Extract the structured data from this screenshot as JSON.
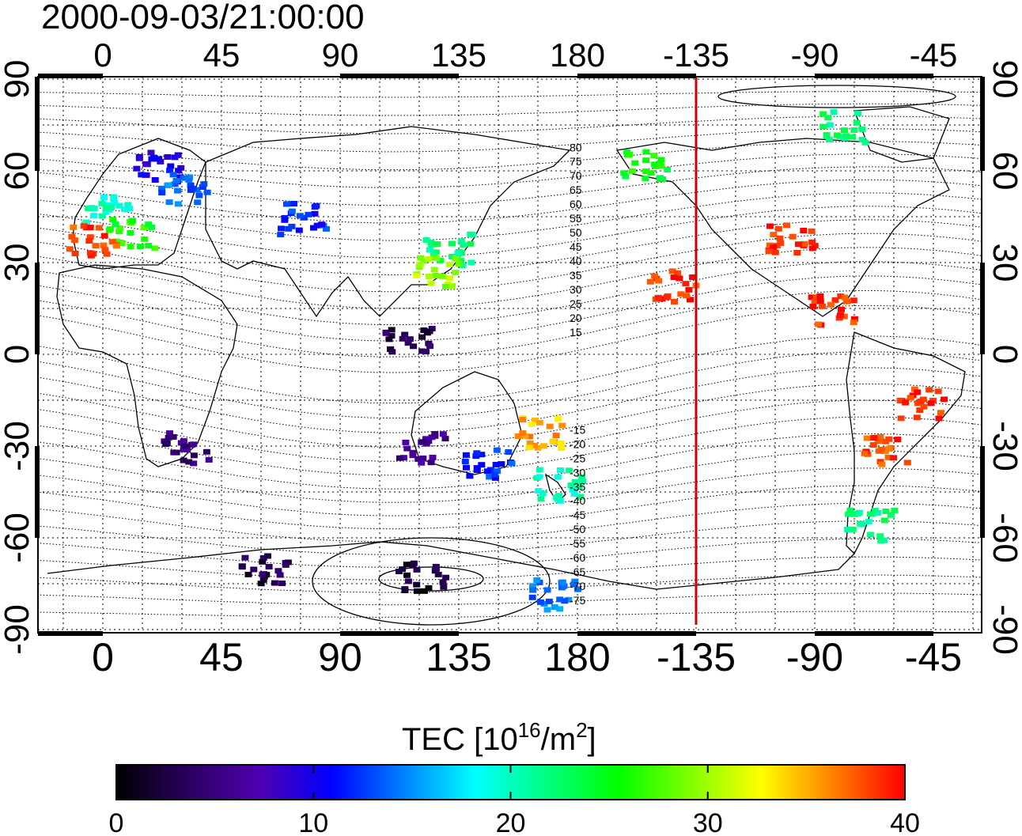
{
  "timestamp": "2000-09-03/21:00:00",
  "lon_ticks": [
    "0",
    "45",
    "90",
    "135",
    "180",
    "-135",
    "-90",
    "-45"
  ],
  "lat_ticks": [
    "90",
    "60",
    "30",
    "0",
    "-30",
    "-60",
    "-90"
  ],
  "contour_labels": [
    "80",
    "75",
    "70",
    "65",
    "60",
    "55",
    "50",
    "45",
    "40",
    "35",
    "30",
    "25",
    "20",
    "15",
    "-15",
    "-20",
    "-25",
    "-30",
    "-35",
    "-40",
    "-45",
    "-50",
    "-55",
    "-60",
    "-65",
    "-70",
    "-75"
  ],
  "colorbar": {
    "title_prefix": "TEC  [10",
    "title_exp": "16",
    "title_mid": "/m",
    "title_exp2": "2",
    "title_suffix": "]",
    "tick_labels": [
      "0",
      "10",
      "20",
      "30",
      "40"
    ],
    "stops": [
      "#000000",
      "#2a0060",
      "#5000b0",
      "#0000ff",
      "#0080ff",
      "#00ffff",
      "#00ff80",
      "#00ff00",
      "#80ff00",
      "#ffff00",
      "#ff8000",
      "#ff0000"
    ],
    "range": [
      0,
      40
    ]
  },
  "terminator_color": "#cc0000",
  "map": {
    "lon_range": [
      -25,
      335
    ],
    "lat_range": [
      -90,
      90
    ],
    "terminator_lon": -135,
    "tec_samples": [
      {
        "lon": 0,
        "lat": 48,
        "tec": 20
      },
      {
        "lon": 10,
        "lat": 40,
        "tec": 26
      },
      {
        "lon": -5,
        "lat": 38,
        "tec": 38
      },
      {
        "lon": 20,
        "lat": 62,
        "tec": 10
      },
      {
        "lon": 30,
        "lat": 55,
        "tec": 14
      },
      {
        "lon": 30,
        "lat": -30,
        "tec": 5
      },
      {
        "lon": 75,
        "lat": 45,
        "tec": 12
      },
      {
        "lon": 130,
        "lat": 35,
        "tec": 22
      },
      {
        "lon": 125,
        "lat": 28,
        "tec": 30
      },
      {
        "lon": 115,
        "lat": 5,
        "tec": 3
      },
      {
        "lon": 120,
        "lat": -30,
        "tec": 6
      },
      {
        "lon": 145,
        "lat": -35,
        "tec": 12
      },
      {
        "lon": 172,
        "lat": -42,
        "tec": 20
      },
      {
        "lon": 165,
        "lat": -25,
        "tec": 35
      },
      {
        "lon": 215,
        "lat": 23,
        "tec": 39
      },
      {
        "lon": 205,
        "lat": 63,
        "tec": 25
      },
      {
        "lon": 260,
        "lat": 38,
        "tec": 39
      },
      {
        "lon": 275,
        "lat": 15,
        "tec": 39
      },
      {
        "lon": 310,
        "lat": -15,
        "tec": 39
      },
      {
        "lon": 295,
        "lat": -30,
        "tec": 38
      },
      {
        "lon": 290,
        "lat": -55,
        "tec": 22
      },
      {
        "lon": 280,
        "lat": 75,
        "tec": 22
      },
      {
        "lon": 60,
        "lat": -70,
        "tec": 3
      },
      {
        "lon": 120,
        "lat": -72,
        "tec": 2
      },
      {
        "lon": 170,
        "lat": -78,
        "tec": 14
      }
    ]
  }
}
